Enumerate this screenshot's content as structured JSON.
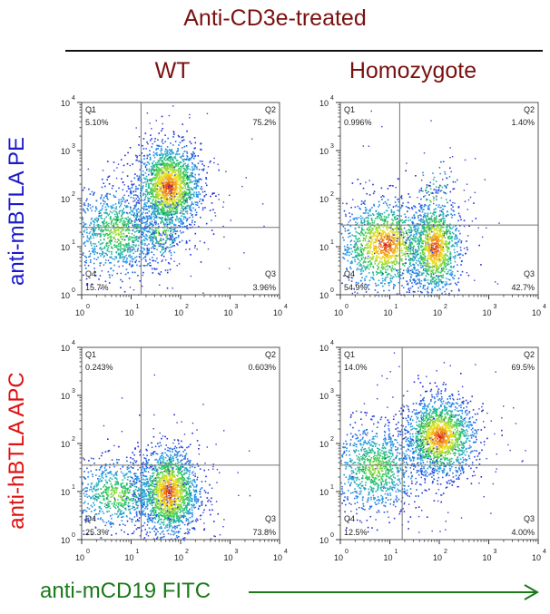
{
  "title": "Anti-CD3e-treated",
  "columns": [
    "WT",
    "Homozygote"
  ],
  "rows": [
    {
      "label": "anti-mBTLA PE",
      "color": "#1a1acc"
    },
    {
      "label": "anti-hBTLA APC",
      "color": "#e01010"
    }
  ],
  "xaxis_label": "anti-mCD19 FITC",
  "colors": {
    "title": "#7a1010",
    "xaxis": "#1a7a1a",
    "arrow": "#1a7a1a"
  },
  "chart_data": [
    {
      "type": "scatter",
      "subtype": "flow-cytometry-density",
      "row": "anti-mBTLA PE",
      "column": "WT",
      "xlim": [
        0,
        4
      ],
      "ylim": [
        0,
        4
      ],
      "scale": "log10",
      "ticks": [
        "0",
        "1",
        "2",
        "3",
        "4"
      ],
      "quadrants": [
        {
          "name": "Q1",
          "value": "5.10%"
        },
        {
          "name": "Q2",
          "value": "75.2%"
        },
        {
          "name": "Q4",
          "value": "15.7%"
        },
        {
          "name": "Q3",
          "value": "3.96%"
        }
      ],
      "gate": {
        "x": 1.2,
        "y": 1.4
      },
      "clusters": [
        {
          "x": 1.75,
          "y": 2.25,
          "sx": 0.32,
          "sy": 0.45,
          "n": 1800,
          "peak": true
        },
        {
          "x": 0.7,
          "y": 1.3,
          "sx": 0.45,
          "sy": 0.45,
          "n": 1000,
          "peak": false
        },
        {
          "x": 1.6,
          "y": 1.3,
          "sx": 0.25,
          "sy": 0.35,
          "n": 200,
          "peak": false
        }
      ]
    },
    {
      "type": "scatter",
      "subtype": "flow-cytometry-density",
      "row": "anti-mBTLA PE",
      "column": "Homozygote",
      "xlim": [
        0,
        4
      ],
      "ylim": [
        0,
        4
      ],
      "scale": "log10",
      "ticks": [
        "0",
        "1",
        "2",
        "3",
        "4"
      ],
      "quadrants": [
        {
          "name": "Q1",
          "value": "0.996%"
        },
        {
          "name": "Q2",
          "value": "1.40%"
        },
        {
          "name": "Q4",
          "value": "54.9%"
        },
        {
          "name": "Q3",
          "value": "42.7%"
        }
      ],
      "gate": {
        "x": 1.2,
        "y": 1.45
      },
      "clusters": [
        {
          "x": 0.9,
          "y": 1.05,
          "sx": 0.45,
          "sy": 0.45,
          "n": 1400,
          "peak": true
        },
        {
          "x": 1.9,
          "y": 1.0,
          "sx": 0.25,
          "sy": 0.5,
          "n": 1100,
          "peak": true
        },
        {
          "x": 1.9,
          "y": 2.0,
          "sx": 0.3,
          "sy": 0.4,
          "n": 60,
          "peak": false
        }
      ]
    },
    {
      "type": "scatter",
      "subtype": "flow-cytometry-density",
      "row": "anti-hBTLA APC",
      "column": "WT",
      "xlim": [
        0,
        4
      ],
      "ylim": [
        0,
        4
      ],
      "scale": "log10",
      "ticks": [
        "0",
        "1",
        "2",
        "3",
        "4"
      ],
      "quadrants": [
        {
          "name": "Q1",
          "value": "0.243%"
        },
        {
          "name": "Q2",
          "value": "0.603%"
        },
        {
          "name": "Q4",
          "value": "25.3%"
        },
        {
          "name": "Q3",
          "value": "73.8%"
        }
      ],
      "gate": {
        "x": 1.2,
        "y": 1.55
      },
      "clusters": [
        {
          "x": 1.75,
          "y": 1.0,
          "sx": 0.3,
          "sy": 0.45,
          "n": 1700,
          "peak": true
        },
        {
          "x": 0.7,
          "y": 0.95,
          "sx": 0.45,
          "sy": 0.35,
          "n": 700,
          "peak": false
        }
      ]
    },
    {
      "type": "scatter",
      "subtype": "flow-cytometry-density",
      "row": "anti-hBTLA APC",
      "column": "Homozygote",
      "xlim": [
        0,
        4
      ],
      "ylim": [
        0,
        4
      ],
      "scale": "log10",
      "ticks": [
        "0",
        "1",
        "2",
        "3",
        "4"
      ],
      "quadrants": [
        {
          "name": "Q1",
          "value": "14.0%"
        },
        {
          "name": "Q2",
          "value": "69.5%"
        },
        {
          "name": "Q4",
          "value": "12.5%"
        },
        {
          "name": "Q3",
          "value": "4.00%"
        }
      ],
      "gate": {
        "x": 1.25,
        "y": 1.55
      },
      "clusters": [
        {
          "x": 2.0,
          "y": 2.15,
          "sx": 0.35,
          "sy": 0.4,
          "n": 1600,
          "peak": true
        },
        {
          "x": 0.7,
          "y": 1.5,
          "sx": 0.45,
          "sy": 0.45,
          "n": 1000,
          "peak": false
        }
      ]
    }
  ]
}
